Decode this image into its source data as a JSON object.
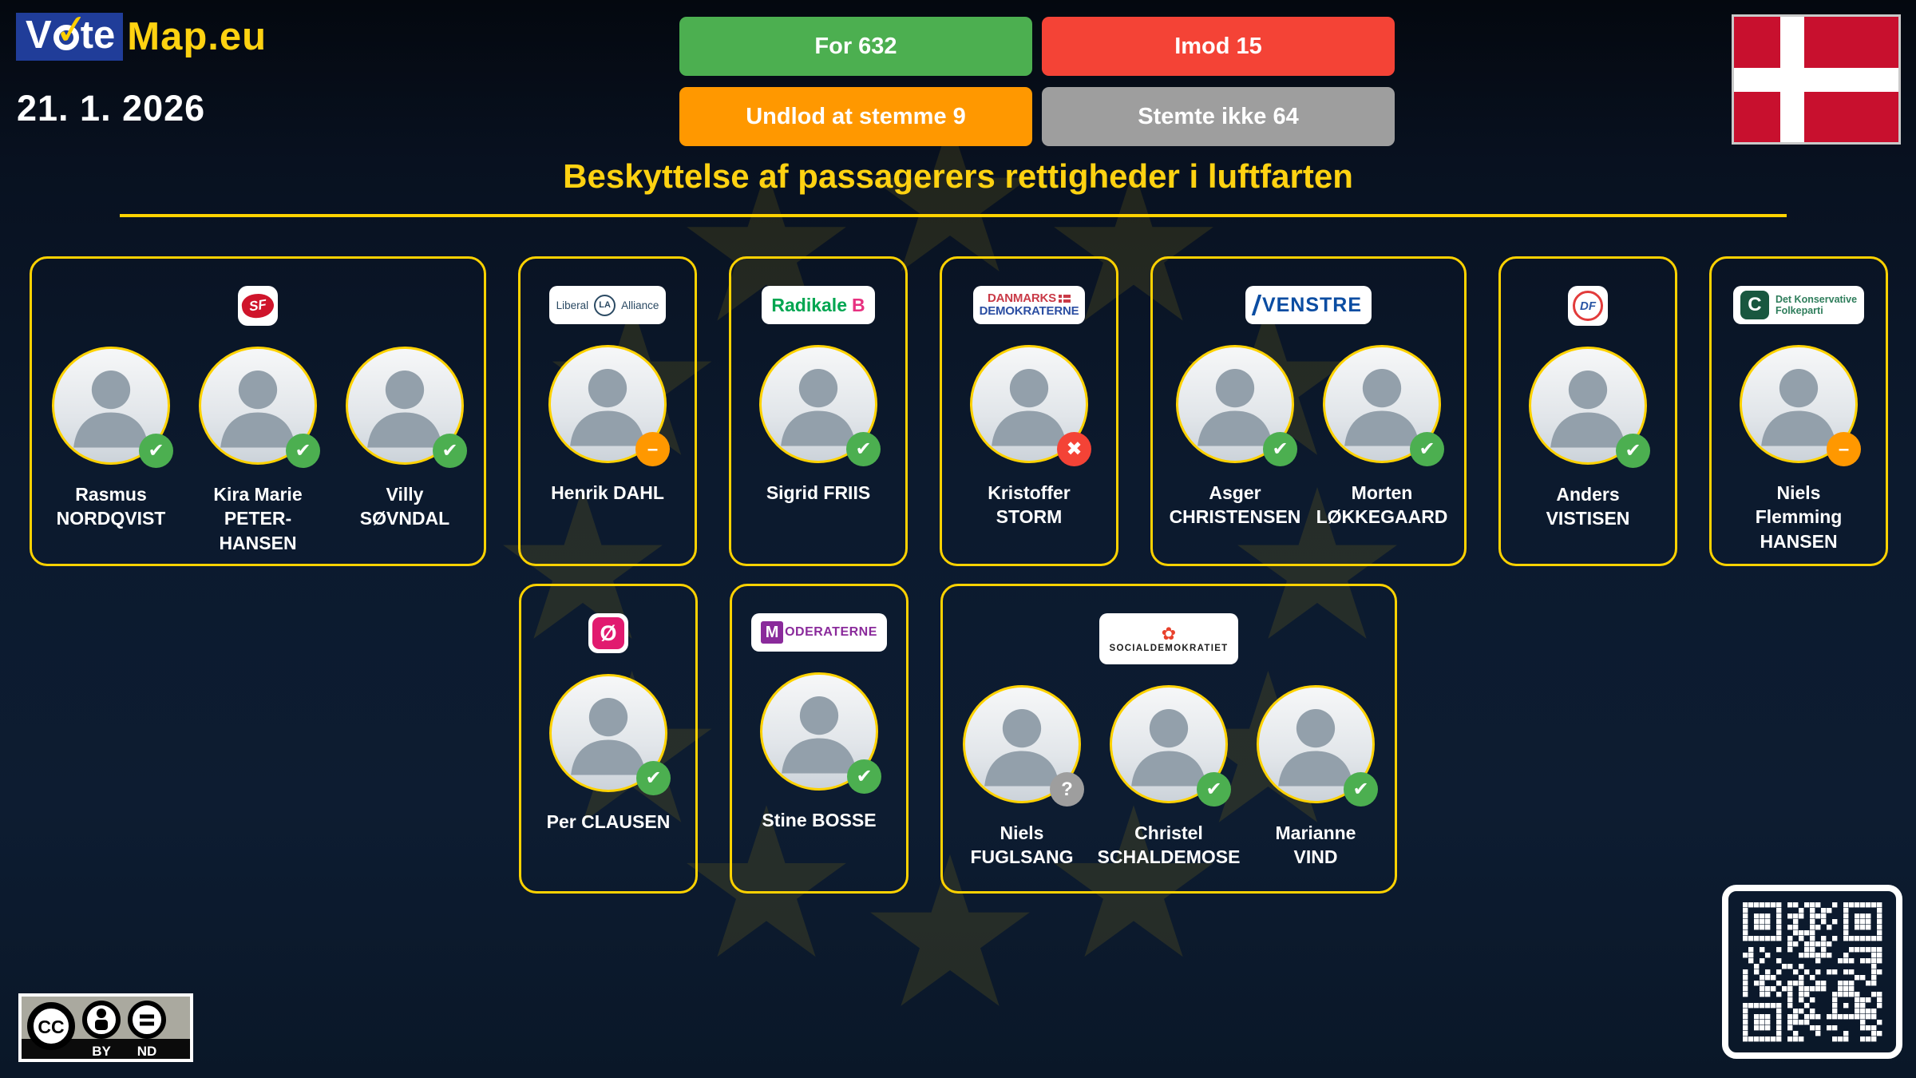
{
  "app": {
    "logo": {
      "v": "V",
      "te": "te",
      "map": "Map.eu",
      "check": "✓"
    },
    "date": "21. 1. 2026"
  },
  "summary_buttons": [
    {
      "id": "for",
      "label": "For 632",
      "color": "#4caf50"
    },
    {
      "id": "against",
      "label": "Imod 15",
      "color": "#f44336"
    },
    {
      "id": "abstain",
      "label": "Undlod at stemme 9",
      "color": "#ff9800"
    },
    {
      "id": "novote",
      "label": "Stemte ikke 64",
      "color": "#9e9e9e"
    }
  ],
  "title": "Beskyttelse af passagerers rettigheder i luftfarten",
  "country_flag": "Denmark",
  "vote_badges": {
    "for": {
      "glyph": "✔",
      "color": "#4caf50"
    },
    "against": {
      "glyph": "✖",
      "color": "#f44336"
    },
    "abstain": {
      "glyph": "–",
      "color": "#ff9800"
    },
    "novote": {
      "glyph": "?",
      "color": "#9e9e9e"
    }
  },
  "parties": [
    {
      "id": "sf",
      "row": 1,
      "logo": {
        "style": "sf-square",
        "text": "SF"
      },
      "members": [
        {
          "name_lines": [
            "Rasmus",
            "NORDQVIST"
          ],
          "vote": "for"
        },
        {
          "name_lines": [
            "Kira Marie",
            "PETER-",
            "HANSEN"
          ],
          "vote": "for"
        },
        {
          "name_lines": [
            "Villy",
            "SØVNDAL"
          ],
          "vote": "for"
        }
      ]
    },
    {
      "id": "liberal-alliance",
      "row": 1,
      "logo": {
        "style": "la",
        "left": "Liberal",
        "badge": "LA",
        "right": "Alliance"
      },
      "members": [
        {
          "name_lines": [
            "Henrik DAHL"
          ],
          "vote": "abstain"
        }
      ]
    },
    {
      "id": "radikale",
      "row": 1,
      "logo": {
        "style": "radikale",
        "text": "Radikale",
        "accent": "B"
      },
      "members": [
        {
          "name_lines": [
            "Sigrid FRIIS"
          ],
          "vote": "for"
        }
      ]
    },
    {
      "id": "danmarksdemokraterne",
      "row": 1,
      "logo": {
        "style": "dd",
        "line1": "DANMARKS",
        "line2": "DEMOKRATERNE"
      },
      "members": [
        {
          "name_lines": [
            "Kristoffer",
            "STORM"
          ],
          "vote": "against"
        }
      ]
    },
    {
      "id": "venstre",
      "row": 1,
      "logo": {
        "style": "venstre",
        "text": "VENSTRE"
      },
      "members": [
        {
          "name_lines": [
            "Asger",
            "CHRISTENSEN"
          ],
          "vote": "for"
        },
        {
          "name_lines": [
            "Morten",
            "LØKKEGAARD"
          ],
          "vote": "for"
        }
      ]
    },
    {
      "id": "df",
      "row": 1,
      "logo": {
        "style": "df",
        "text": "DF"
      },
      "members": [
        {
          "name_lines": [
            "Anders",
            "VISTISEN"
          ],
          "vote": "for"
        }
      ]
    },
    {
      "id": "konservative",
      "row": 1,
      "logo": {
        "style": "k",
        "c": "C",
        "line1": "Det Konservative",
        "line2": "Folkeparti"
      },
      "members": [
        {
          "name_lines": [
            "Niels",
            "Flemming",
            "HANSEN"
          ],
          "vote": "abstain"
        }
      ]
    },
    {
      "id": "enhedslisten",
      "row": 2,
      "logo": {
        "style": "o-square",
        "text": "Ø"
      },
      "members": [
        {
          "name_lines": [
            "Per CLAUSEN"
          ],
          "vote": "for"
        }
      ]
    },
    {
      "id": "moderaterne",
      "row": 2,
      "logo": {
        "style": "moderaterne",
        "m": "M",
        "rest": "ODERATERNE"
      },
      "members": [
        {
          "name_lines": [
            "Stine BOSSE"
          ],
          "vote": "for"
        }
      ]
    },
    {
      "id": "socialdemokratiet",
      "row": 2,
      "logo": {
        "style": "s",
        "rose": "✿",
        "text": "SOCIALDEMOKRATIET"
      },
      "members": [
        {
          "name_lines": [
            "Niels",
            "FUGLSANG"
          ],
          "vote": "novote"
        },
        {
          "name_lines": [
            "Christel",
            "SCHALDEMOSE"
          ],
          "vote": "for"
        },
        {
          "name_lines": [
            "Marianne",
            "VIND"
          ],
          "vote": "for"
        }
      ]
    }
  ],
  "license": {
    "cc": "CC",
    "by": "BY",
    "nd": "ND"
  },
  "theme": {
    "accent_yellow": "#ffd200",
    "logo_blue": "#203d99",
    "background_navy": "#0c1a2e",
    "star_color": "#d8b407",
    "for_green": "#4caf50",
    "against_red": "#f44336",
    "abstain_orange": "#ff9800",
    "novote_gray": "#9e9e9e",
    "flag_red": "#c8102e"
  }
}
